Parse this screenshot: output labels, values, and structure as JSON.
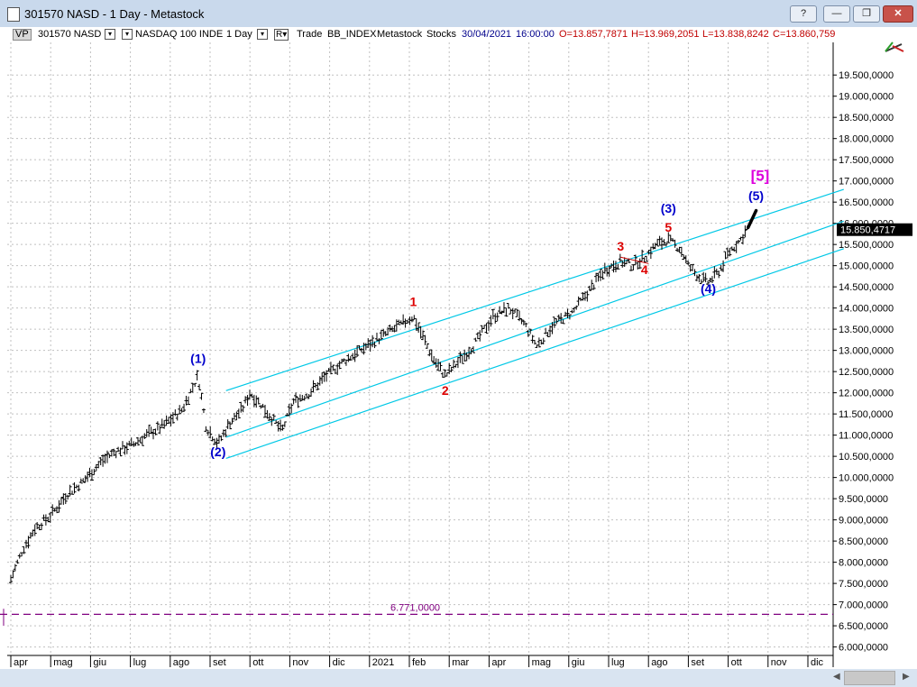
{
  "window": {
    "title": "301570 NASD - 1 Day - Metastock",
    "app_icon": "document-icon",
    "help_label": "?",
    "minimize_label": "—",
    "maximize_label": "❐",
    "close_label": "✕"
  },
  "toolbar": {
    "vp_label": "VP",
    "symbol": "301570 NASD",
    "security": "NASDAQ 100 INDE",
    "period": "1 Day",
    "r_label": "R▾",
    "trade": "Trade",
    "exchange": "BB_INDEX",
    "source": "Metastock",
    "type": "Stocks",
    "date": "30/04/2021",
    "time": "16:00:00",
    "open": "O=13.857,7871",
    "high": "H=13.969,2051",
    "low": "L=13.838,8242",
    "close": "C=13.860,759",
    "dropdown_glyph": "▾",
    "tool_icon": "drawing-tools-icon"
  },
  "chart_data": {
    "type": "candlestick",
    "y_axis": {
      "min": 5800000,
      "max": 20100000,
      "ticks": [
        "6.000,0000",
        "6.500,0000",
        "7.000,0000",
        "7.500,0000",
        "8.000,0000",
        "8.500,0000",
        "9.000,0000",
        "9.500,0000",
        "10.000,0000",
        "10.500,0000",
        "11.000,0000",
        "11.500,0000",
        "12.000,0000",
        "12.500,0000",
        "13.000,0000",
        "13.500,0000",
        "14.000,0000",
        "14.500,0000",
        "15.000,0000",
        "15.500,0000",
        "16.000,0000",
        "16.500,0000",
        "17.000,0000",
        "17.500,0000",
        "18.000,0000",
        "18.500,0000",
        "19.000,0000",
        "19.500,0000"
      ],
      "tick_values": [
        6000000,
        6500000,
        7000000,
        7500000,
        8000000,
        8500000,
        9000000,
        9500000,
        10000000,
        10500000,
        11000000,
        11500000,
        12000000,
        12500000,
        13000000,
        13500000,
        14000000,
        14500000,
        15000000,
        15500000,
        16000000,
        16500000,
        17000000,
        17500000,
        18000000,
        18500000,
        19000000,
        19500000
      ]
    },
    "x_axis": {
      "labels": [
        "apr",
        "mag",
        "giu",
        "lug",
        "ago",
        "set",
        "ott",
        "nov",
        "dic",
        "2021",
        "feb",
        "mar",
        "apr",
        "mag",
        "giu",
        "lug",
        "ago",
        "set",
        "ott",
        "nov",
        "dic"
      ],
      "positions": [
        0,
        1,
        2,
        3,
        4,
        5,
        6,
        7,
        8,
        9,
        10,
        11,
        12,
        13,
        14,
        15,
        16,
        17,
        18,
        19,
        20
      ],
      "last_bar": 18.7
    },
    "series": {
      "path": [
        [
          0,
          7.6
        ],
        [
          0.3,
          8.3
        ],
        [
          0.6,
          8.8
        ],
        [
          1,
          9.1
        ],
        [
          1.4,
          9.6
        ],
        [
          1.8,
          9.9
        ],
        [
          2.3,
          10.4
        ],
        [
          2.6,
          10.6
        ],
        [
          3.1,
          10.8
        ],
        [
          3.4,
          11.0
        ],
        [
          3.8,
          11.2
        ],
        [
          4.3,
          11.6
        ],
        [
          4.7,
          12.4
        ],
        [
          4.9,
          11.2
        ],
        [
          5.2,
          10.8
        ],
        [
          5.5,
          11.3
        ],
        [
          5.8,
          11.6
        ],
        [
          6.0,
          12.0
        ],
        [
          6.3,
          11.7
        ],
        [
          6.8,
          11.1
        ],
        [
          7.1,
          11.8
        ],
        [
          7.5,
          12.0
        ],
        [
          7.9,
          12.4
        ],
        [
          8.3,
          12.7
        ],
        [
          8.6,
          12.9
        ],
        [
          9.1,
          13.2
        ],
        [
          9.6,
          13.5
        ],
        [
          10.1,
          13.8
        ],
        [
          10.6,
          12.8
        ],
        [
          10.9,
          12.4
        ],
        [
          11.2,
          12.7
        ],
        [
          11.6,
          13.1
        ],
        [
          12.1,
          13.8
        ],
        [
          12.5,
          14.0
        ],
        [
          12.9,
          13.6
        ],
        [
          13.2,
          13.1
        ],
        [
          13.6,
          13.6
        ],
        [
          14.1,
          13.9
        ],
        [
          14.5,
          14.4
        ],
        [
          14.9,
          14.9
        ],
        [
          15.3,
          15.1
        ],
        [
          15.6,
          15.0
        ],
        [
          15.9,
          15.2
        ],
        [
          16.2,
          15.5
        ],
        [
          16.5,
          15.6
        ],
        [
          16.8,
          15.4
        ],
        [
          17.0,
          15.0
        ],
        [
          17.3,
          14.7
        ],
        [
          17.5,
          14.6
        ],
        [
          17.8,
          14.9
        ],
        [
          18.0,
          15.3
        ],
        [
          18.3,
          15.6
        ],
        [
          18.5,
          15.9
        ],
        [
          18.7,
          16.3
        ]
      ],
      "final_segment": [
        [
          18.5,
          15.9
        ],
        [
          18.7,
          16.3
        ]
      ],
      "current_value": "15.850,4717",
      "current_y": 15.85
    },
    "channel_lines": [
      {
        "from": [
          5.4,
          12.05
        ],
        "to": [
          20.9,
          16.8
        ]
      },
      {
        "from": [
          5.4,
          10.95
        ],
        "to": [
          20.9,
          16.05
        ]
      },
      {
        "from": [
          5.4,
          10.45
        ],
        "to": [
          20.9,
          15.4
        ]
      }
    ],
    "support_line": {
      "value": 6.771,
      "label": "6.771,0000"
    },
    "wave_labels": [
      {
        "text": "(1)",
        "x": 4.7,
        "y": 12.7,
        "color": "#0000cc"
      },
      {
        "text": "(2)",
        "x": 5.2,
        "y": 10.5,
        "color": "#0000cc"
      },
      {
        "text": "1",
        "x": 10.1,
        "y": 14.05,
        "color": "#dd0000"
      },
      {
        "text": "2",
        "x": 10.9,
        "y": 11.95,
        "color": "#dd0000"
      },
      {
        "text": "3",
        "x": 15.3,
        "y": 15.35,
        "color": "#dd0000"
      },
      {
        "text": "4",
        "x": 15.9,
        "y": 14.8,
        "color": "#dd0000"
      },
      {
        "text": "5",
        "x": 16.5,
        "y": 15.8,
        "color": "#dd0000"
      },
      {
        "text": "(3)",
        "x": 16.5,
        "y": 16.25,
        "color": "#0000cc"
      },
      {
        "text": "(4)",
        "x": 17.5,
        "y": 14.35,
        "color": "#0000cc"
      },
      {
        "text": "(5)",
        "x": 18.7,
        "y": 16.55,
        "color": "#0000cc"
      },
      {
        "text": "[5]",
        "x": 18.8,
        "y": 17.0,
        "color": "#dd00dd"
      }
    ],
    "colors": {
      "bars": "#000000",
      "channel": "#00c8e6",
      "support": "#800080",
      "axis_labels": "#000000",
      "grid": "#c0c0c0",
      "price_box": "#000000"
    }
  },
  "scrollbar": {
    "left_arrow": "◀",
    "right_arrow": "▶"
  }
}
